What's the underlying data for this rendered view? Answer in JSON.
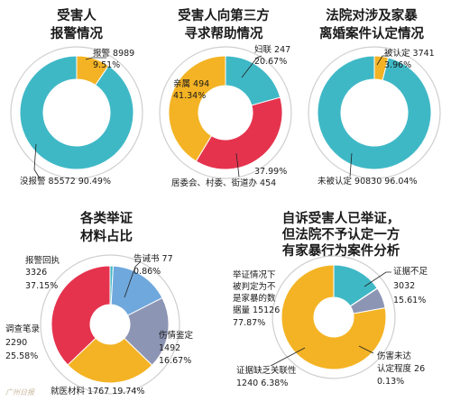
{
  "colors": {
    "teal": "#3fb8c6",
    "orange": "#f4b324",
    "crimson": "#e5334e",
    "lightblue": "#6fa8dc",
    "slate": "#8d95b4",
    "pink": "#f08aa0",
    "white": "#ffffff"
  },
  "chart_data": [
    {
      "type": "pie",
      "title_lines": [
        "受害人",
        "报警情况"
      ],
      "slices": [
        {
          "label": "报警",
          "value": 8989,
          "percent": "9.51%",
          "color": "#f4b324"
        },
        {
          "label": "没报警",
          "value": 85572,
          "percent": "90.49%",
          "color": "#3fb8c6"
        }
      ]
    },
    {
      "type": "pie",
      "title_lines": [
        "受害人向第三方",
        "寻求帮助情况"
      ],
      "slices": [
        {
          "label": "妇联",
          "value": 247,
          "percent": "20.67%",
          "color": "#3fb8c6"
        },
        {
          "label": "居委会、村委、街道办",
          "value": 454,
          "percent": "37.99%",
          "color": "#e5334e"
        },
        {
          "label": "亲属",
          "value": 494,
          "percent": "41.34%",
          "color": "#f4b324"
        }
      ]
    },
    {
      "type": "pie",
      "title_lines": [
        "法院对涉及家暴",
        "离婚案件认定情况"
      ],
      "slices": [
        {
          "label": "被认定",
          "value": 3741,
          "percent": "3.96%",
          "color": "#f4b324"
        },
        {
          "label": "未被认定",
          "value": 90830,
          "percent": "96.04%",
          "color": "#3fb8c6"
        }
      ]
    },
    {
      "type": "pie",
      "title_lines": [
        "各类举证",
        "材料占比"
      ],
      "slices": [
        {
          "label": "告诫书",
          "value": 77,
          "percent": "0.86%",
          "color": "#3fb8c6"
        },
        {
          "label": "伤情鉴定",
          "value": 1492,
          "percent": "16.67%",
          "color": "#6fa8dc"
        },
        {
          "label": "就医材料",
          "value": 1767,
          "percent": "19.74%",
          "color": "#8d95b4"
        },
        {
          "label": "调查笔录",
          "value": 2290,
          "percent": "25.58%",
          "color": "#f4b324"
        },
        {
          "label": "报警回执",
          "value": 3326,
          "percent": "37.15%",
          "color": "#e5334e"
        }
      ]
    },
    {
      "type": "pie",
      "title_lines": [
        "自诉受害人已举证，",
        "但法院不予认定一方",
        "有家暴行为案件分析"
      ],
      "slices": [
        {
          "label": "证据不足",
          "value": 3032,
          "percent": "15.61%",
          "color": "#3fb8c6"
        },
        {
          "label": "伤害未达认定程度",
          "value": 26,
          "percent": "0.13%",
          "color": "#f08aa0"
        },
        {
          "label": "证据缺乏关联性",
          "value": 1240,
          "percent": "6.38%",
          "color": "#8d95b4"
        },
        {
          "label": "举证情况下被判定为不是家暴的数据量",
          "value": 15126,
          "percent": "77.87%",
          "color": "#f4b324"
        }
      ]
    }
  ],
  "labels": {
    "c1": {
      "bao": "报警 8989",
      "bao_pct": "9.51%",
      "mei": "没报警 85572   90.49%"
    },
    "c2": {
      "fu": "妇联 247",
      "fu_pct": "20.67%",
      "qin": "亲属 494",
      "qin_pct": "41.34%",
      "ju_pct": "37.99%",
      "ju": "居委会、村委、街道办 454"
    },
    "c3": {
      "bei": "被认定 3741",
      "bei_pct": "3.96%",
      "wei": "未被认定 90830  96.04%"
    },
    "c4": {
      "bao1": "报警回执",
      "bao2": "3326",
      "bao3": "37.15%",
      "gao": "告诫书 77",
      "gao_pct": "0.86%",
      "shang1": "伤情鉴定",
      "shang2": "1492",
      "shang3": "16.67%",
      "diao1": "调查笔录",
      "diao2": "2290",
      "diao3": "25.58%",
      "jiu": "就医材料 1767  19.74%"
    },
    "c5": {
      "ju1": "举证情况下",
      "ju2": "被判定为不",
      "ju3": "是家暴的数",
      "ju4": "据量 15126",
      "ju5": "77.87%",
      "zheng1": "证据不足",
      "zheng2": "3032",
      "zheng3": "15.61%",
      "que1": "证据缺乏关联性",
      "que2": "1240  6.38%",
      "hai1": "伤害未达",
      "hai2": "认定程度 26",
      "hai3": "0.13%"
    }
  },
  "watermark": "广州日报"
}
